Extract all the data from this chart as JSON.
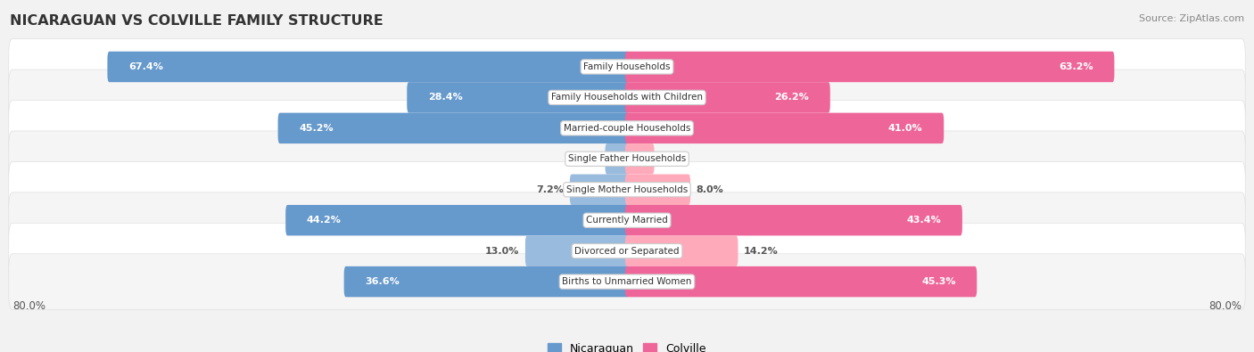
{
  "title": "NICARAGUAN VS COLVILLE FAMILY STRUCTURE",
  "source": "Source: ZipAtlas.com",
  "categories": [
    "Family Households",
    "Family Households with Children",
    "Married-couple Households",
    "Single Father Households",
    "Single Mother Households",
    "Currently Married",
    "Divorced or Separated",
    "Births to Unmarried Women"
  ],
  "nicaraguan_values": [
    67.4,
    28.4,
    45.2,
    2.6,
    7.2,
    44.2,
    13.0,
    36.6
  ],
  "colville_values": [
    63.2,
    26.2,
    41.0,
    3.3,
    8.0,
    43.4,
    14.2,
    45.3
  ],
  "max_val": 80.0,
  "blue_strong": "#6699cc",
  "blue_light": "#99bbdd",
  "pink_strong": "#ee6699",
  "pink_light": "#ffaabb",
  "bg_color": "#f2f2f2",
  "row_white": "#ffffff",
  "row_light": "#f0f0f0",
  "label_threshold": 20,
  "legend_nicaraguan": "Nicaraguan",
  "legend_colville": "Colville"
}
